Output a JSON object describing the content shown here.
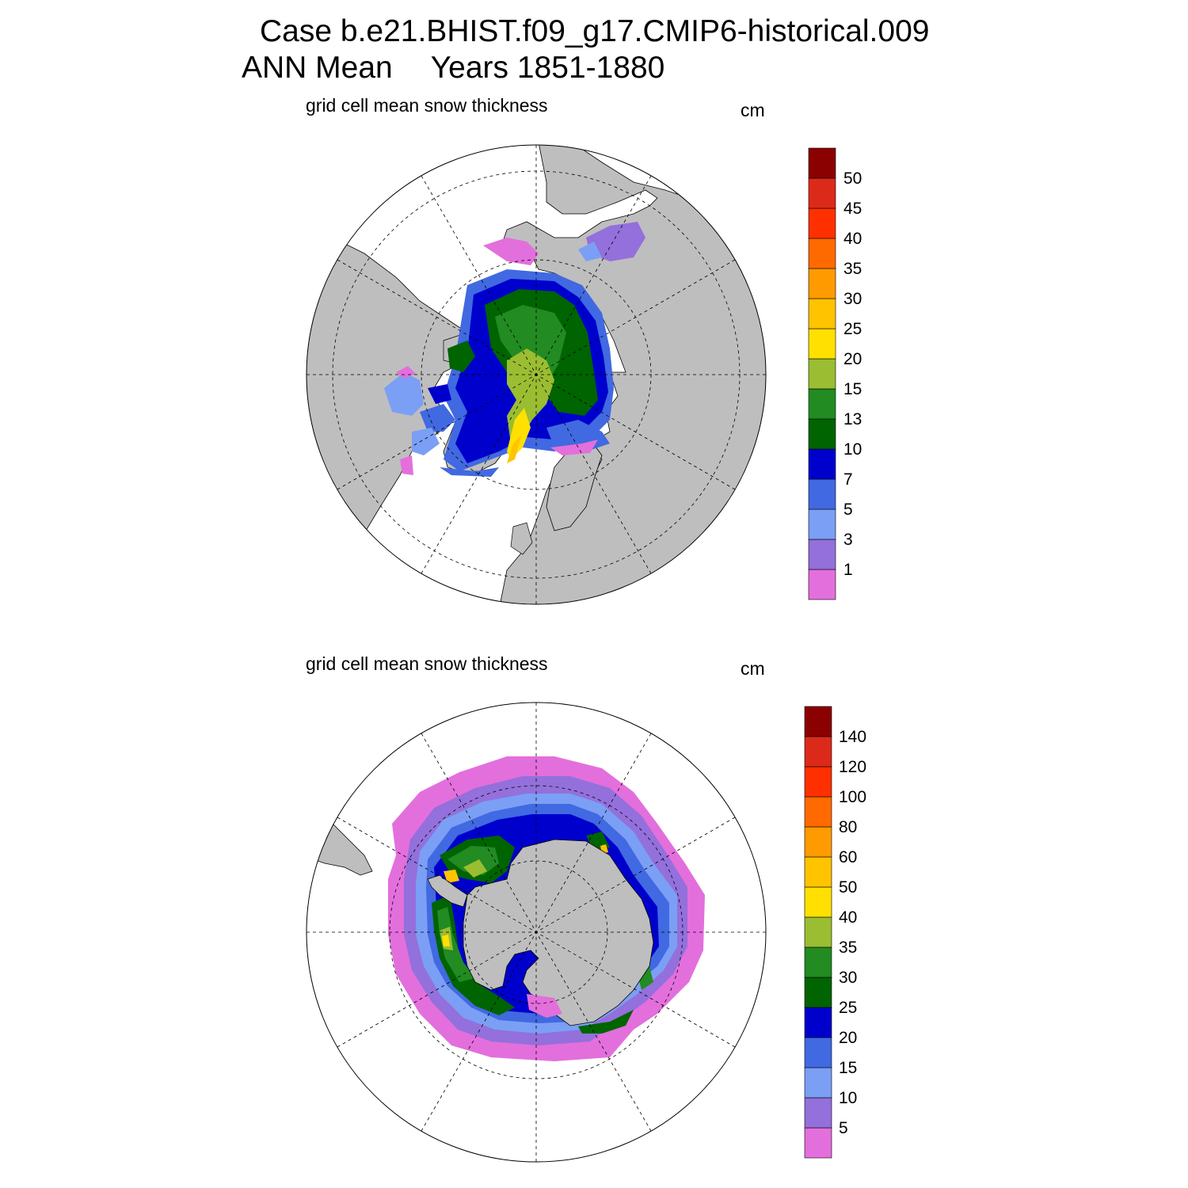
{
  "header": {
    "case_line": "Case b.e21.BHIST.f09_g17.CMIP6-historical.009",
    "season": "ANN Mean",
    "years": "Years 1851-1880"
  },
  "colors": {
    "land": "#bebebe",
    "sea_ice_free": "#ffffff",
    "palette": [
      "#e36fdc",
      "#9370db",
      "#7b9ff5",
      "#4169e1",
      "#0000cd",
      "#006400",
      "#228b22",
      "#9abd32",
      "#ffe000",
      "#ffc300",
      "#ff9b00",
      "#ff6a00",
      "#ff3000",
      "#dc2a1a",
      "#8b0000"
    ]
  },
  "chart_data": [
    {
      "type": "map",
      "projection": "north polar stereographic",
      "title": "grid cell mean snow thickness",
      "units": "cm",
      "colorbar_levels": [
        "1",
        "3",
        "5",
        "7",
        "10",
        "13",
        "15",
        "20",
        "25",
        "30",
        "35",
        "40",
        "45",
        "50"
      ]
    },
    {
      "type": "map",
      "projection": "south polar stereographic",
      "title": "grid cell mean snow thickness",
      "units": "cm",
      "colorbar_levels": [
        "5",
        "10",
        "15",
        "20",
        "25",
        "30",
        "35",
        "40",
        "50",
        "60",
        "80",
        "100",
        "120",
        "140"
      ]
    }
  ]
}
